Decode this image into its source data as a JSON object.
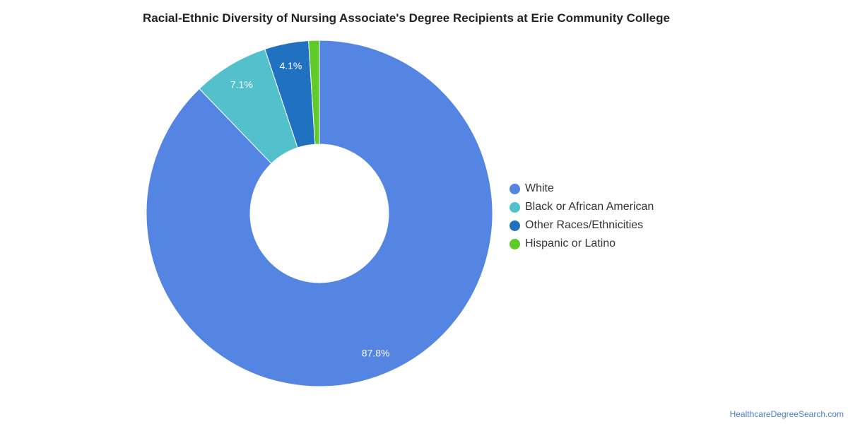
{
  "chart_data": {
    "type": "pie",
    "title": "Racial-Ethnic Diversity of Nursing Associate's Degree Recipients at Erie Community College",
    "categories": [
      "White",
      "Black or African American",
      "Other Races/Ethnicities",
      "Hispanic or Latino"
    ],
    "values": [
      87.8,
      7.1,
      4.1,
      1.0
    ],
    "labels": [
      "87.8%",
      "7.1%",
      "4.1%",
      ""
    ],
    "colors": [
      "#5585e3",
      "#52c1cc",
      "#2171c1",
      "#5ecb29"
    ],
    "legend_position": "right",
    "donut": true
  },
  "source": "HealthcareDegreeSearch.com"
}
